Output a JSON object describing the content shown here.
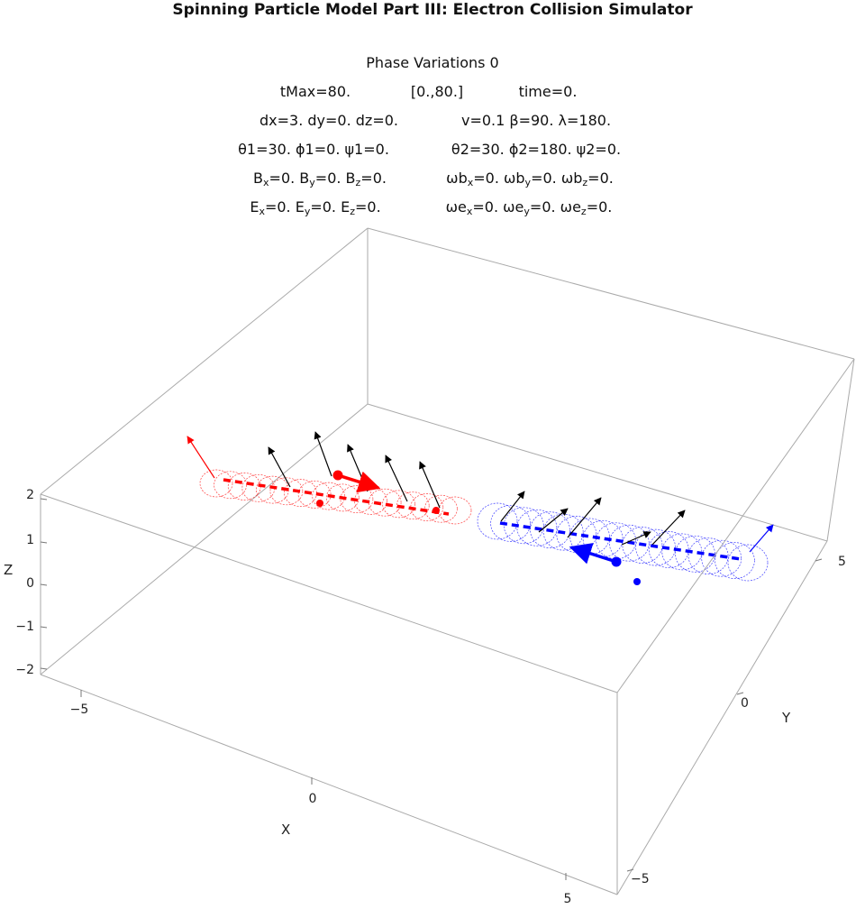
{
  "title": "Spinning Particle Model Part III: Electron Collision Simulator",
  "params": {
    "line1": "Phase Variations 0",
    "tmax": "tMax=80.",
    "range": "[0.,80.]",
    "time": "time=0.",
    "dxyz": "dx=3. dy=0. dz=0.",
    "vbl": "v=0.1 β=90. λ=180.",
    "angles1": "θ1=30. ϕ1=0. ψ1=0.",
    "angles2": "θ2=30. ϕ2=180. ψ2=0.",
    "B": {
      "x": "0.",
      "y": "0.",
      "z": "0."
    },
    "wb": {
      "x": "0.",
      "y": "0.",
      "z": "0."
    },
    "E": {
      "x": "0.",
      "y": "0.",
      "z": "0."
    },
    "we": {
      "x": "0.",
      "y": "0.",
      "z": "0."
    }
  },
  "axes": {
    "x_label": "X",
    "y_label": "Y",
    "z_label": "Z",
    "x_ticks": [
      "−5",
      "0",
      "5"
    ],
    "y_ticks": [
      "5",
      "0",
      "−5"
    ],
    "z_ticks": [
      "2",
      "1",
      "0",
      "−1",
      "−2"
    ]
  },
  "colors": {
    "particle1": "#ff0000",
    "particle2": "#0000ff",
    "spin_vectors": "#000000",
    "box": "#aaaaaa"
  }
}
